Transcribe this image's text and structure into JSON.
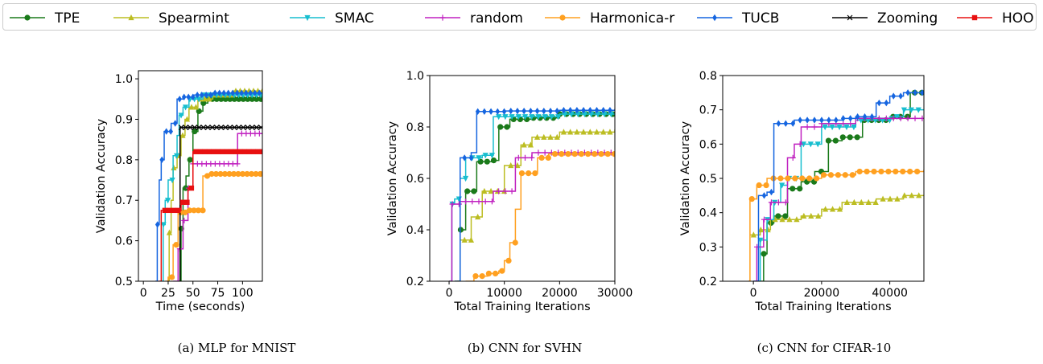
{
  "legend": [
    {
      "name": "TPE",
      "color": "#1a7a1a",
      "marker": "circle"
    },
    {
      "name": "Spearmint",
      "color": "#bcbd22",
      "marker": "triangle-up"
    },
    {
      "name": "SMAC",
      "color": "#17becf",
      "marker": "triangle-down"
    },
    {
      "name": "random",
      "color": "#c020c0",
      "marker": "plus"
    },
    {
      "name": "Harmonica-r",
      "color": "#ffa020",
      "marker": "circle"
    },
    {
      "name": "TUCB",
      "color": "#1565e0",
      "marker": "diamond"
    },
    {
      "name": "Zooming",
      "color": "#000000",
      "marker": "x"
    },
    {
      "name": "HOO",
      "color": "#e81010",
      "marker": "square"
    }
  ],
  "captions": {
    "a": "(a) MLP for MNIST",
    "b": "(b) CNN for SVHN",
    "c": "(c) CNN for CIFAR-10"
  },
  "chart_data": [
    {
      "type": "line",
      "step": true,
      "xlabel": "Time (seconds)",
      "ylabel": "Validation Accuracy",
      "xlim": [
        -5,
        120
      ],
      "ylim": [
        0.5,
        1.02
      ],
      "xticks": [
        0,
        25,
        50,
        75,
        100
      ],
      "xtick_labels": [
        "0",
        "25",
        "50",
        "75",
        "100"
      ],
      "yticks": [
        0.5,
        0.6,
        0.7,
        0.8,
        0.9,
        1.0
      ],
      "ytick_labels": [
        "0.5",
        "0.6",
        "0.7",
        "0.8",
        "0.9",
        "1.0"
      ],
      "series": [
        {
          "name": "TPE",
          "points": [
            [
              36,
              0.5
            ],
            [
              38,
              0.63
            ],
            [
              40,
              0.73
            ],
            [
              43,
              0.76
            ],
            [
              46,
              0.8
            ],
            [
              50,
              0.87
            ],
            [
              55,
              0.92
            ],
            [
              60,
              0.94
            ],
            [
              65,
              0.95
            ],
            [
              120,
              0.95
            ]
          ]
        },
        {
          "name": "Spearmint",
          "points": [
            [
              24,
              0.5
            ],
            [
              26,
              0.62
            ],
            [
              28,
              0.7
            ],
            [
              30,
              0.78
            ],
            [
              34,
              0.81
            ],
            [
              38,
              0.86
            ],
            [
              42,
              0.9
            ],
            [
              46,
              0.93
            ],
            [
              55,
              0.95
            ],
            [
              70,
              0.96
            ],
            [
              90,
              0.97
            ],
            [
              120,
              0.97
            ]
          ]
        },
        {
          "name": "SMAC",
          "points": [
            [
              18,
              0.5
            ],
            [
              20,
              0.64
            ],
            [
              22,
              0.7
            ],
            [
              25,
              0.75
            ],
            [
              30,
              0.81
            ],
            [
              34,
              0.86
            ],
            [
              36,
              0.91
            ],
            [
              40,
              0.93
            ],
            [
              46,
              0.95
            ],
            [
              60,
              0.96
            ],
            [
              120,
              0.965
            ]
          ]
        },
        {
          "name": "random",
          "points": [
            [
              30,
              0.5
            ],
            [
              35,
              0.58
            ],
            [
              40,
              0.65
            ],
            [
              45,
              0.73
            ],
            [
              50,
              0.79
            ],
            [
              70,
              0.79
            ],
            [
              95,
              0.865
            ],
            [
              120,
              0.865
            ]
          ]
        },
        {
          "name": "Harmonica-r",
          "points": [
            [
              22,
              0.5
            ],
            [
              25,
              0.51
            ],
            [
              30,
              0.59
            ],
            [
              35,
              0.67
            ],
            [
              45,
              0.675
            ],
            [
              60,
              0.76
            ],
            [
              65,
              0.765
            ],
            [
              120,
              0.765
            ]
          ]
        },
        {
          "name": "TUCB",
          "points": [
            [
              12,
              0.5
            ],
            [
              14,
              0.64
            ],
            [
              16,
              0.75
            ],
            [
              18,
              0.8
            ],
            [
              21,
              0.87
            ],
            [
              28,
              0.89
            ],
            [
              34,
              0.95
            ],
            [
              40,
              0.955
            ],
            [
              50,
              0.96
            ],
            [
              70,
              0.965
            ],
            [
              120,
              0.965
            ]
          ]
        },
        {
          "name": "Zooming",
          "points": [
            [
              36,
              0.5
            ],
            [
              37,
              0.88
            ],
            [
              120,
              0.88
            ]
          ]
        },
        {
          "name": "HOO",
          "points": [
            [
              15,
              0.5
            ],
            [
              18,
              0.675
            ],
            [
              38,
              0.695
            ],
            [
              45,
              0.73
            ],
            [
              50,
              0.82
            ],
            [
              120,
              0.82
            ]
          ]
        }
      ]
    },
    {
      "type": "line",
      "step": true,
      "xlabel": "Total Training Iterations",
      "ylabel": "Validation Accuracy",
      "xlim": [
        -3500,
        30000
      ],
      "ylim": [
        0.2,
        1.0
      ],
      "xticks": [
        0,
        10000,
        20000,
        30000
      ],
      "xtick_labels": [
        "0",
        "10000",
        "20000",
        "30000"
      ],
      "yticks": [
        0.2,
        0.4,
        0.6,
        0.8,
        1.0
      ],
      "ytick_labels": [
        "0.2",
        "0.4",
        "0.6",
        "0.8",
        "1.0"
      ],
      "series": [
        {
          "name": "TPE",
          "points": [
            [
              1500,
              0.2
            ],
            [
              2000,
              0.4
            ],
            [
              3000,
              0.55
            ],
            [
              5000,
              0.665
            ],
            [
              8000,
              0.67
            ],
            [
              9000,
              0.8
            ],
            [
              11000,
              0.83
            ],
            [
              15000,
              0.835
            ],
            [
              20000,
              0.85
            ],
            [
              30000,
              0.855
            ]
          ]
        },
        {
          "name": "Spearmint",
          "points": [
            [
              1000,
              0.2
            ],
            [
              2000,
              0.36
            ],
            [
              4000,
              0.45
            ],
            [
              6000,
              0.55
            ],
            [
              10000,
              0.65
            ],
            [
              13000,
              0.73
            ],
            [
              15000,
              0.76
            ],
            [
              20000,
              0.78
            ],
            [
              30000,
              0.79
            ]
          ]
        },
        {
          "name": "SMAC",
          "points": [
            [
              0,
              0.2
            ],
            [
              500,
              0.5
            ],
            [
              1000,
              0.52
            ],
            [
              2000,
              0.6
            ],
            [
              3000,
              0.68
            ],
            [
              6000,
              0.69
            ],
            [
              8000,
              0.84
            ],
            [
              20000,
              0.85
            ],
            [
              30000,
              0.85
            ]
          ]
        },
        {
          "name": "random",
          "points": [
            [
              0,
              0.2
            ],
            [
              500,
              0.5
            ],
            [
              2000,
              0.51
            ],
            [
              5000,
              0.51
            ],
            [
              8000,
              0.55
            ],
            [
              12000,
              0.68
            ],
            [
              15000,
              0.7
            ],
            [
              30000,
              0.7
            ]
          ]
        },
        {
          "name": "Harmonica-r",
          "points": [
            [
              3000,
              0.2
            ],
            [
              4500,
              0.22
            ],
            [
              7000,
              0.23
            ],
            [
              9000,
              0.24
            ],
            [
              10000,
              0.28
            ],
            [
              11000,
              0.35
            ],
            [
              12000,
              0.48
            ],
            [
              13000,
              0.62
            ],
            [
              16000,
              0.68
            ],
            [
              18000,
              0.695
            ],
            [
              30000,
              0.695
            ]
          ]
        },
        {
          "name": "TUCB",
          "points": [
            [
              1000,
              0.2
            ],
            [
              2000,
              0.68
            ],
            [
              4000,
              0.7
            ],
            [
              5000,
              0.86
            ],
            [
              10000,
              0.862
            ],
            [
              20000,
              0.865
            ],
            [
              30000,
              0.87
            ]
          ]
        }
      ]
    },
    {
      "type": "line",
      "step": true,
      "xlabel": "Total Training Iterations",
      "ylabel": "Validation Accuracy",
      "xlim": [
        -9000,
        50000
      ],
      "ylim": [
        0.2,
        0.8
      ],
      "xticks": [
        0,
        20000,
        40000
      ],
      "xtick_labels": [
        "0",
        "20000",
        "40000"
      ],
      "yticks": [
        0.2,
        0.3,
        0.4,
        0.5,
        0.6,
        0.7,
        0.8
      ],
      "ytick_labels": [
        "0.2",
        "0.3",
        "0.4",
        "0.5",
        "0.6",
        "0.7",
        "0.8"
      ],
      "series": [
        {
          "name": "TPE",
          "points": [
            [
              2000,
              0.2
            ],
            [
              3000,
              0.28
            ],
            [
              4000,
              0.37
            ],
            [
              6000,
              0.39
            ],
            [
              10000,
              0.47
            ],
            [
              14000,
              0.49
            ],
            [
              18000,
              0.52
            ],
            [
              22000,
              0.61
            ],
            [
              26000,
              0.62
            ],
            [
              32000,
              0.67
            ],
            [
              40000,
              0.68
            ],
            [
              46000,
              0.75
            ],
            [
              50000,
              0.75
            ]
          ]
        },
        {
          "name": "Spearmint",
          "points": [
            [
              -1000,
              0.335
            ],
            [
              2000,
              0.35
            ],
            [
              5000,
              0.38
            ],
            [
              14000,
              0.39
            ],
            [
              20000,
              0.41
            ],
            [
              26000,
              0.43
            ],
            [
              36000,
              0.44
            ],
            [
              44000,
              0.45
            ],
            [
              50000,
              0.45
            ]
          ]
        },
        {
          "name": "SMAC",
          "points": [
            [
              1000,
              0.2
            ],
            [
              2000,
              0.32
            ],
            [
              4000,
              0.38
            ],
            [
              6000,
              0.43
            ],
            [
              8000,
              0.48
            ],
            [
              10000,
              0.5
            ],
            [
              14000,
              0.6
            ],
            [
              20000,
              0.65
            ],
            [
              30000,
              0.67
            ],
            [
              40000,
              0.68
            ],
            [
              44000,
              0.7
            ],
            [
              50000,
              0.7
            ]
          ]
        },
        {
          "name": "random",
          "points": [
            [
              0,
              0.2
            ],
            [
              1000,
              0.3
            ],
            [
              3000,
              0.38
            ],
            [
              5000,
              0.43
            ],
            [
              10000,
              0.56
            ],
            [
              12000,
              0.6
            ],
            [
              14000,
              0.65
            ],
            [
              20000,
              0.66
            ],
            [
              30000,
              0.675
            ],
            [
              50000,
              0.675
            ]
          ]
        },
        {
          "name": "Harmonica-r",
          "points": [
            [
              -1500,
              0.2
            ],
            [
              -1000,
              0.44
            ],
            [
              1000,
              0.48
            ],
            [
              4000,
              0.5
            ],
            [
              8000,
              0.5
            ],
            [
              14000,
              0.5
            ],
            [
              20000,
              0.51
            ],
            [
              30000,
              0.52
            ],
            [
              40000,
              0.52
            ],
            [
              50000,
              0.525
            ]
          ]
        },
        {
          "name": "TUCB",
          "points": [
            [
              0,
              0.2
            ],
            [
              1500,
              0.45
            ],
            [
              4000,
              0.46
            ],
            [
              6000,
              0.66
            ],
            [
              12000,
              0.67
            ],
            [
              20000,
              0.67
            ],
            [
              26000,
              0.675
            ],
            [
              30000,
              0.68
            ],
            [
              36000,
              0.72
            ],
            [
              40000,
              0.74
            ],
            [
              44000,
              0.75
            ],
            [
              50000,
              0.75
            ]
          ]
        }
      ]
    }
  ]
}
